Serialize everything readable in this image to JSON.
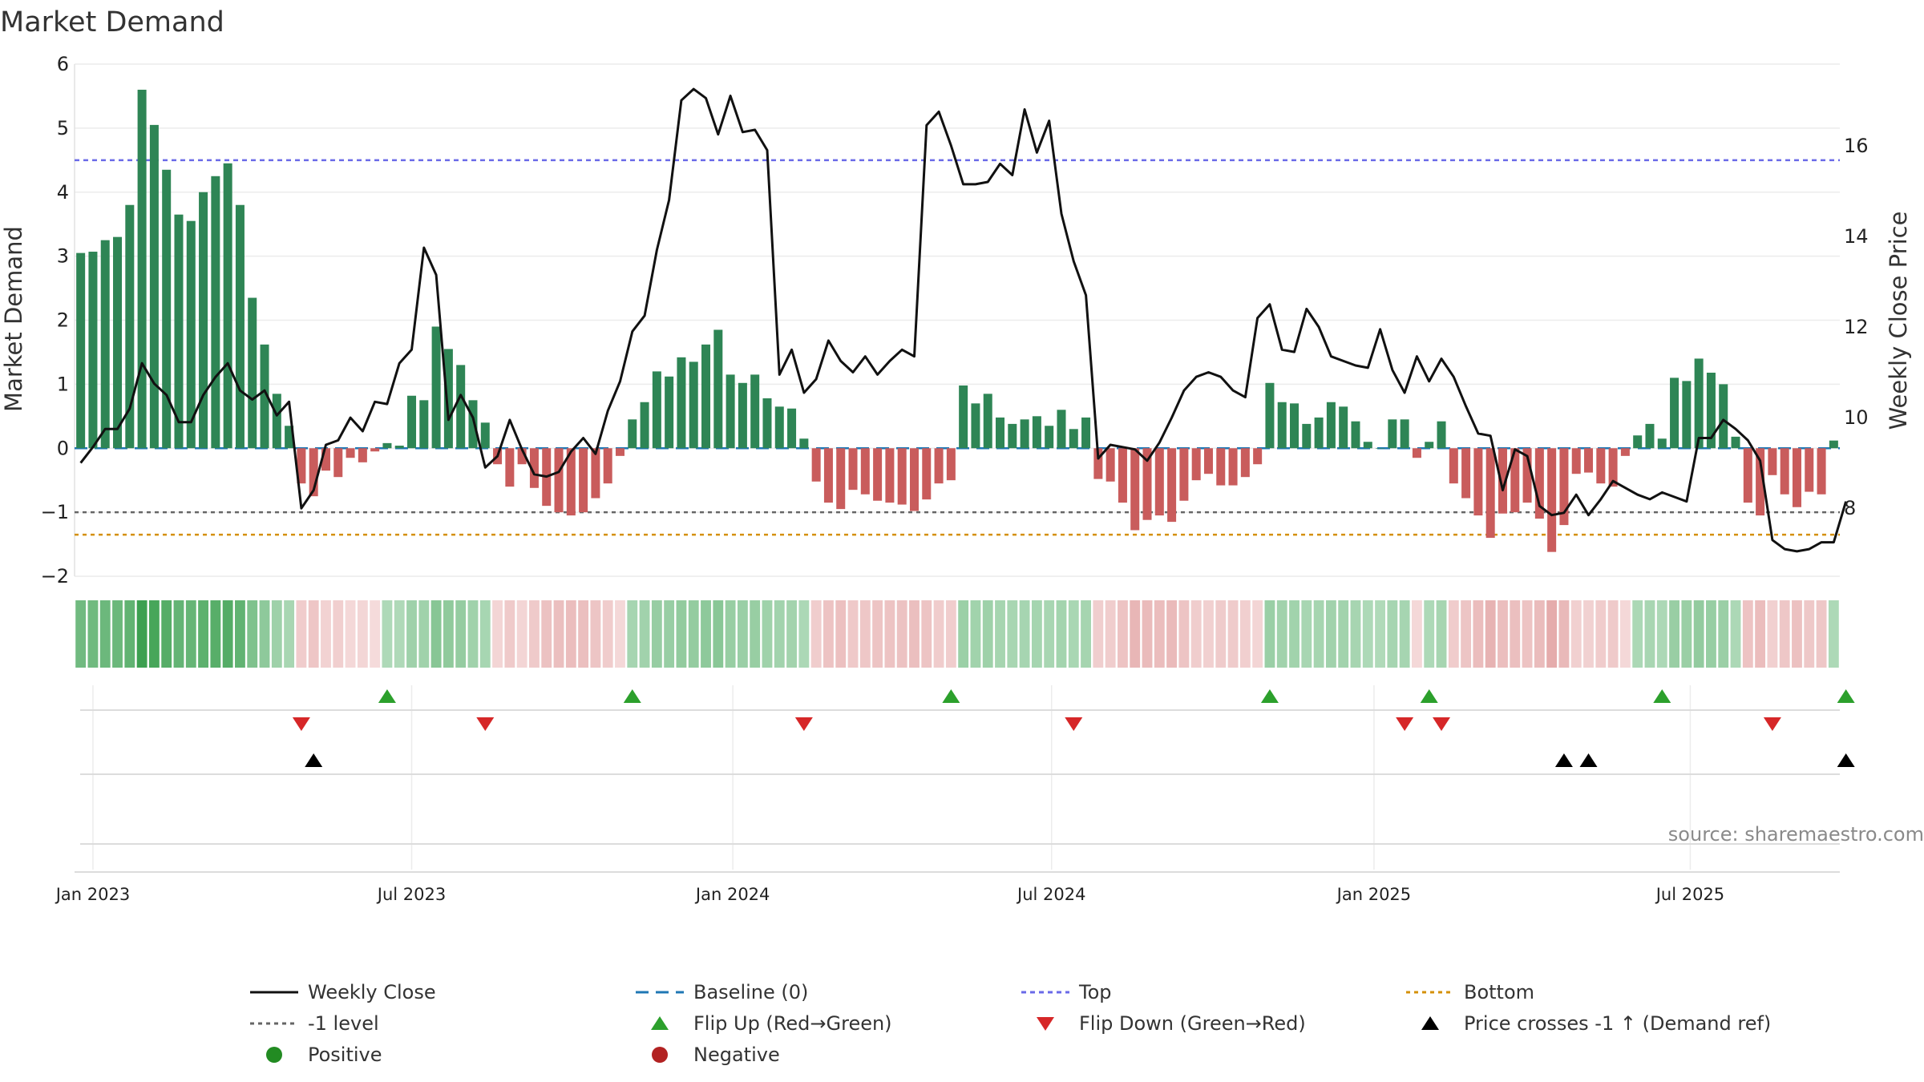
{
  "chart_data": {
    "type": "bar",
    "title": "Market Demand",
    "ylabel": "Market Demand",
    "y2label": "Weekly Close Price",
    "ylim": [
      -2,
      6
    ],
    "y2lim": [
      6.5,
      17.8
    ],
    "y_ticks": [
      -2,
      -1,
      0,
      1,
      2,
      3,
      4,
      5,
      6
    ],
    "y_tick_labels": [
      "−2",
      "−1",
      "0",
      "1",
      "2",
      "3",
      "4",
      "5",
      "6"
    ],
    "y2_ticks": [
      8,
      10,
      12,
      14,
      16
    ],
    "x_ticks": [
      {
        "week": 1.5,
        "label": "Jan 2023"
      },
      {
        "week": 27.5,
        "label": "Jul 2023"
      },
      {
        "week": 53.7,
        "label": "Jan 2024"
      },
      {
        "week": 79.7,
        "label": "Jul 2024"
      },
      {
        "week": 106,
        "label": "Jan 2025"
      },
      {
        "week": 131.8,
        "label": "Jul 2025"
      }
    ],
    "levels": {
      "top": 4.5,
      "minus_one": -1,
      "bottom": -1.35,
      "baseline": 0
    },
    "demand": [
      3.05,
      3.07,
      3.25,
      3.3,
      3.8,
      5.6,
      5.05,
      4.35,
      3.65,
      3.55,
      4.0,
      4.25,
      4.45,
      3.8,
      2.35,
      1.62,
      0.85,
      0.35,
      -0.55,
      -0.75,
      -0.35,
      -0.45,
      -0.15,
      -0.22,
      -0.05,
      0.08,
      0.04,
      0.82,
      0.75,
      1.9,
      1.55,
      1.3,
      0.75,
      0.4,
      -0.25,
      -0.6,
      -0.25,
      -0.62,
      -0.9,
      -1.0,
      -1.05,
      -1.0,
      -0.78,
      -0.55,
      -0.12,
      0.45,
      0.72,
      1.2,
      1.12,
      1.42,
      1.35,
      1.62,
      1.85,
      1.15,
      1.02,
      1.15,
      0.78,
      0.65,
      0.62,
      0.15,
      -0.52,
      -0.85,
      -0.95,
      -0.65,
      -0.72,
      -0.82,
      -0.85,
      -0.88,
      -0.98,
      -0.8,
      -0.55,
      -0.5,
      0.98,
      0.7,
      0.85,
      0.48,
      0.38,
      0.45,
      0.5,
      0.35,
      0.6,
      0.3,
      0.48,
      -0.48,
      -0.52,
      -0.85,
      -1.28,
      -1.12,
      -1.05,
      -1.15,
      -0.82,
      -0.5,
      -0.4,
      -0.58,
      -0.58,
      -0.45,
      -0.25,
      1.02,
      0.72,
      0.7,
      0.38,
      0.48,
      0.72,
      0.65,
      0.42,
      0.1,
      0.0,
      0.45,
      0.45,
      -0.15,
      0.1,
      0.42,
      -0.55,
      -0.78,
      -1.05,
      -1.4,
      -1.02,
      -1.0,
      -0.85,
      -1.1,
      -1.62,
      -1.2,
      -0.4,
      -0.38,
      -0.55,
      -0.6,
      -0.12,
      0.2,
      0.38,
      0.15,
      1.1,
      1.05,
      1.4,
      1.18,
      1.0,
      0.18,
      -0.85,
      -1.05,
      -0.42,
      -0.72,
      -0.92,
      -0.68,
      -0.72,
      0.12
    ],
    "close": [
      9.0,
      9.35,
      9.75,
      9.75,
      10.2,
      11.2,
      10.75,
      10.5,
      9.9,
      9.9,
      10.5,
      10.9,
      11.2,
      10.6,
      10.4,
      10.6,
      10.05,
      10.35,
      8.0,
      8.4,
      9.4,
      9.5,
      10.0,
      9.7,
      10.35,
      10.3,
      11.2,
      11.5,
      13.75,
      13.15,
      9.95,
      10.5,
      10.0,
      8.9,
      9.15,
      9.95,
      9.3,
      8.75,
      8.7,
      8.8,
      9.25,
      9.55,
      9.2,
      10.15,
      10.8,
      11.9,
      12.25,
      13.7,
      14.8,
      17.0,
      17.25,
      17.05,
      16.25,
      17.1,
      16.3,
      16.35,
      15.9,
      10.95,
      11.5,
      10.55,
      10.85,
      11.7,
      11.25,
      11.0,
      11.35,
      10.95,
      11.25,
      11.5,
      11.35,
      16.45,
      16.75,
      16.0,
      15.15,
      15.15,
      15.2,
      15.6,
      15.35,
      16.8,
      15.85,
      16.55,
      14.5,
      13.45,
      12.7,
      9.1,
      9.4,
      9.35,
      9.3,
      9.05,
      9.45,
      10.0,
      10.6,
      10.9,
      11.0,
      10.9,
      10.6,
      10.45,
      12.2,
      12.5,
      11.5,
      11.45,
      12.4,
      12.0,
      11.35,
      11.25,
      11.15,
      11.1,
      11.95,
      11.05,
      10.55,
      11.35,
      10.8,
      11.3,
      10.9,
      10.25,
      9.65,
      9.6,
      8.4,
      9.3,
      9.15,
      8.05,
      7.85,
      7.9,
      8.3,
      7.85,
      8.2,
      8.6,
      8.45,
      8.3,
      8.2,
      8.35,
      8.25,
      8.15,
      9.55,
      9.55,
      9.95,
      9.75,
      9.5,
      9.05,
      7.3,
      7.1,
      7.05,
      7.1,
      7.25,
      7.25,
      8.15
    ],
    "flip_up": [
      25,
      45,
      71,
      97,
      110,
      129,
      144
    ],
    "flip_down": [
      18,
      33,
      59,
      81,
      108,
      111,
      138
    ],
    "price_cross": [
      19,
      121,
      123,
      144
    ],
    "source": "source: sharemaestro.com",
    "legend": [
      "Weekly Close",
      "Baseline (0)",
      "Top",
      "Bottom",
      "-1 level",
      "Flip Up (Red→Green)",
      "Flip Down (Green→Red)",
      "Price crosses -1 ↑ (Demand ref)",
      "Positive",
      "Negative"
    ],
    "colors": {
      "positive": "#2e8555",
      "negative": "#c95c5c",
      "line": "#111111",
      "baseline": "#1f77b4",
      "top": "#6a6ae8",
      "minus_one": "#666666",
      "bottom": "#d4900a",
      "flip_up": "#2ca02c",
      "flip_down": "#d62728",
      "cross": "#000000",
      "legend_positive": "#228b22",
      "legend_negative": "#b22222"
    }
  }
}
